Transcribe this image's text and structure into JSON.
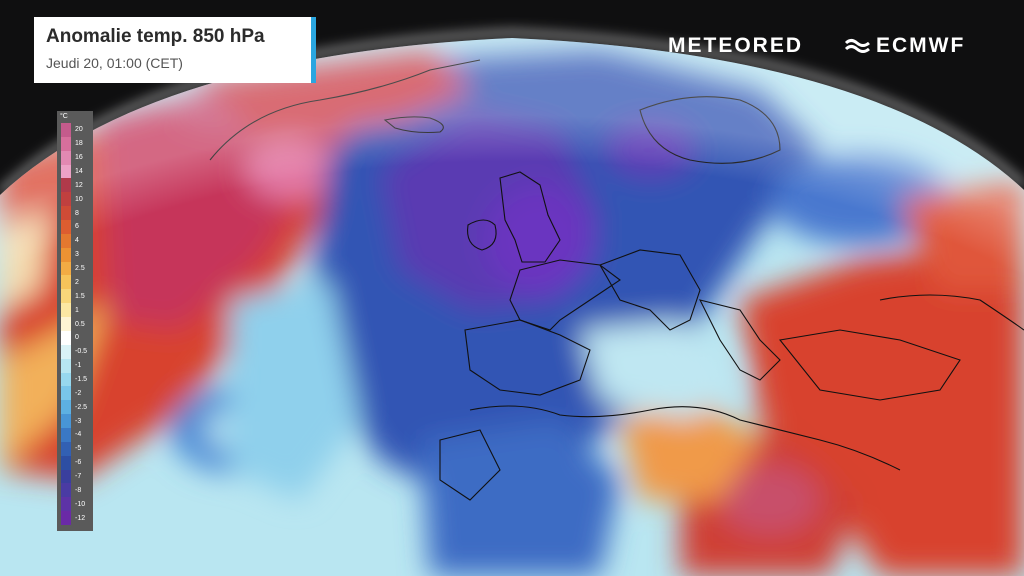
{
  "header": {
    "title": "Anomalie temp. 850 hPa",
    "subtitle": "Jeudi 20, 01:00 (CET)"
  },
  "brands": {
    "meteored": "METEORED",
    "ecmwf": "ECMWF"
  },
  "legend": {
    "unit": "°C",
    "labels": [
      "20",
      "18",
      "16",
      "14",
      "12",
      "10",
      "8",
      "6",
      "4",
      "3",
      "2.5",
      "2",
      "1.5",
      "1",
      "0.5",
      "0",
      "-0.5",
      "-1",
      "-1.5",
      "-2",
      "-2.5",
      "-3",
      "-4",
      "-5",
      "-6",
      "-7",
      "-8",
      "-10",
      "-12"
    ],
    "colors": [
      "#c45b8c",
      "#d76f9c",
      "#e289b2",
      "#eca2c6",
      "#b03a4a",
      "#c0403f",
      "#cf4b36",
      "#dd5d30",
      "#e4782f",
      "#ec9233",
      "#f2ab44",
      "#f6c35a",
      "#f8d67a",
      "#fbe7a3",
      "#fdf4d4",
      "#ffffff",
      "#d9f2f6",
      "#b7e6f1",
      "#97d8ee",
      "#79c6ea",
      "#5db0e2",
      "#4895d6",
      "#3a78c5",
      "#3260b3",
      "#2d4ea3",
      "#3a3f9e",
      "#4a3ba3",
      "#5d33a6",
      "#6a2aa6"
    ]
  },
  "map": {
    "warm_color": "#d8432e",
    "cold_color": "#3154b4",
    "anomaly_warm_peak": "#e06aa0",
    "anomaly_cold_peak": "#6a34c0"
  }
}
